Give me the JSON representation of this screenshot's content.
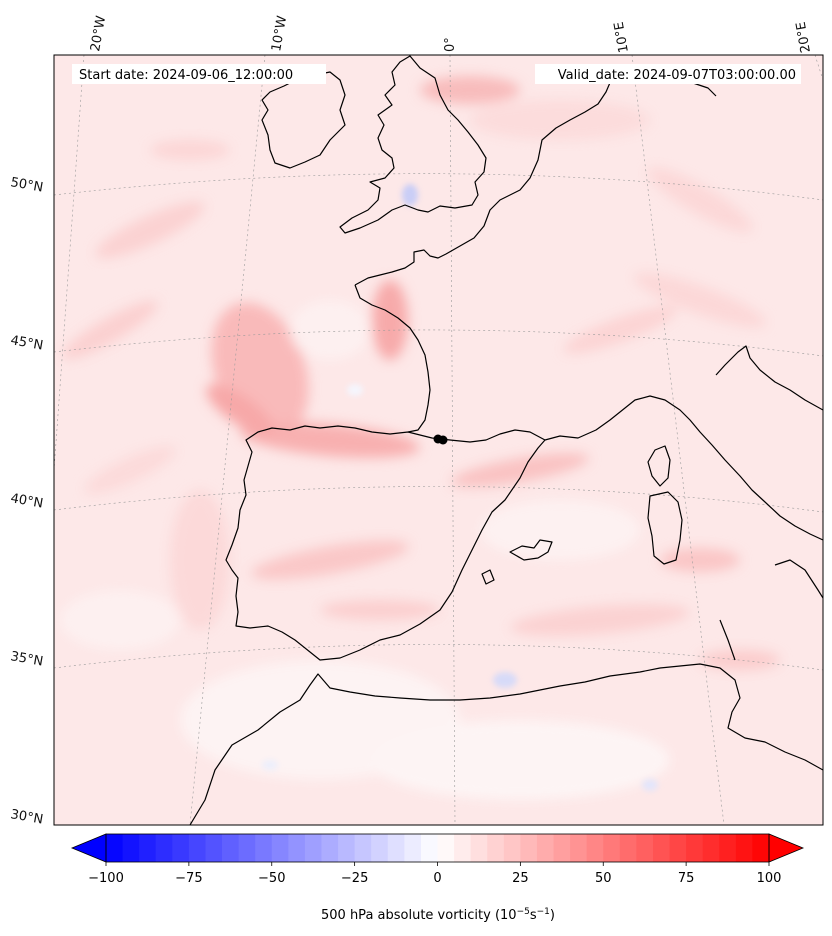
{
  "header": {
    "start_date": "Start date: 2024-09-06_12:00:00",
    "valid_date": "Valid_date: 2024-09-07T03:00:00.00"
  },
  "lon_labels": [
    "20°W",
    "10°W",
    "0°",
    "10°E",
    "20°E"
  ],
  "lat_labels": [
    "50°N",
    "45°N",
    "40°N",
    "35°N",
    "30°N"
  ],
  "colorbar": {
    "ticks": [
      -100,
      -75,
      -50,
      -25,
      0,
      25,
      50,
      75,
      100
    ],
    "tick_labels": [
      "−100",
      "−75",
      "−50",
      "−25",
      "0",
      "25",
      "50",
      "75",
      "100"
    ],
    "range": [
      -100,
      100
    ],
    "step": 5,
    "colormap": "bwr",
    "extend": "both",
    "label_prefix": "500 hPa absolute vorticity (10",
    "label_exp1": "−5",
    "label_mid": "s",
    "label_exp2": "−1",
    "label_suffix": ")"
  },
  "map": {
    "projection": "conic",
    "extent_lon": [
      -20,
      20
    ],
    "extent_lat": [
      30,
      55
    ],
    "graticule": "dotted gray",
    "background_color": "#fde9e9",
    "coastline_color": "#000000",
    "marker": {
      "lon": 0,
      "lat": 42,
      "color": "#000000"
    }
  }
}
